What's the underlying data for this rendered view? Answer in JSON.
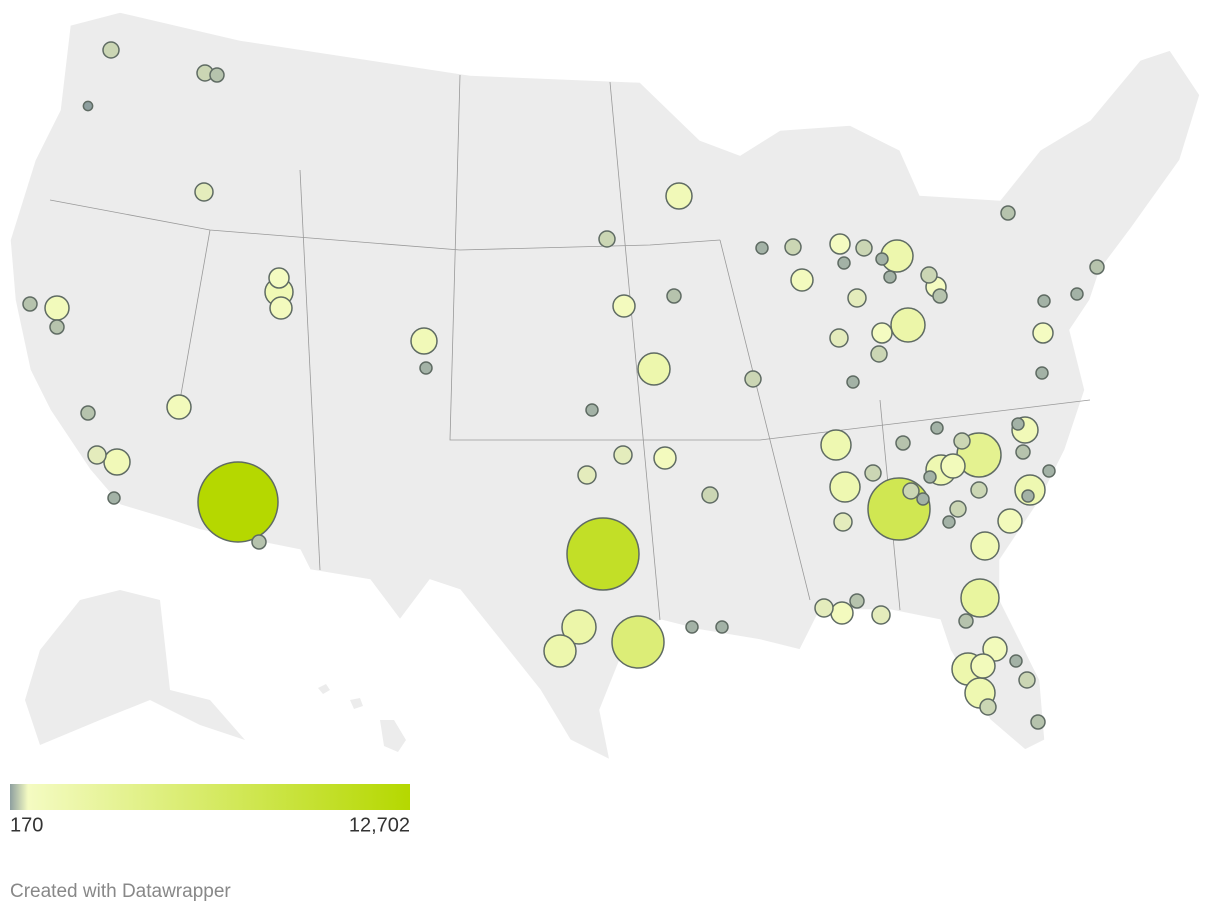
{
  "chart_data": {
    "type": "bubble-map",
    "values": [
      508,
      508,
      389,
      170,
      643,
      794,
      1556,
      960,
      389,
      1143,
      389,
      1342,
      286,
      1143,
      389,
      643,
      1342,
      286,
      12702,
      389,
      1342,
      508,
      960,
      389,
      2032,
      286,
      643,
      643,
      960,
      508,
      10289,
      2294,
      2032,
      5366,
      286,
      286,
      286,
      508,
      960,
      794,
      286,
      508,
      286,
      2032,
      286,
      643,
      643,
      794,
      2294,
      508,
      286,
      508,
      508,
      794,
      389,
      389,
      389,
      286,
      286,
      794,
      286,
      1786,
      389,
      286,
      508,
      3842,
      286,
      1342,
      389,
      286,
      1786,
      1143,
      286,
      508,
      1786,
      7630,
      508,
      286,
      508,
      1786,
      286,
      508,
      286,
      1143,
      1556,
      643,
      2865,
      389,
      643,
      960,
      389,
      643,
      1143,
      2032,
      1143,
      1786,
      508,
      286,
      508,
      389
    ],
    "colors": [
      "#8e9f9f",
      "#f4fbc2",
      "#b5d800"
    ],
    "legend_ticks": [
      170,
      {
        "value": 12702,
        "label": "12,702"
      }
    ],
    "credit": "Created with Datawrapper"
  }
}
